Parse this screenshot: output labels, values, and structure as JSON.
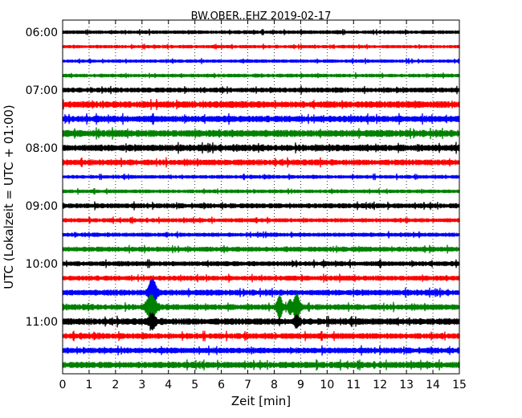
{
  "chart_data": {
    "type": "line",
    "title": "BW.OBER..EHZ 2019-02-17",
    "xlabel": "Zeit  [min]",
    "ylabel": "UTC (Lokalzeit = UTC + 01:00)",
    "xlim": [
      0,
      15
    ],
    "x_ticks": [
      "0",
      "1",
      "2",
      "3",
      "4",
      "5",
      "6",
      "7",
      "8",
      "9",
      "10",
      "11",
      "12",
      "13",
      "14",
      "15"
    ],
    "y_ticks": [
      "06:00",
      "07:00",
      "08:00",
      "09:00",
      "10:00",
      "11:00"
    ],
    "grid": "vertical dotted",
    "color_cycle": [
      "#000000",
      "#ff0000",
      "#0000ff",
      "#008000"
    ],
    "series": [
      {
        "start": "06:00",
        "noise": 0.22,
        "color": "#000000"
      },
      {
        "start": "06:15",
        "noise": 0.2,
        "color": "#ff0000"
      },
      {
        "start": "06:30",
        "noise": 0.2,
        "color": "#0000ff"
      },
      {
        "start": "06:45",
        "noise": 0.22,
        "color": "#008000"
      },
      {
        "start": "07:00",
        "noise": 0.3,
        "color": "#000000"
      },
      {
        "start": "07:15",
        "noise": 0.4,
        "color": "#ff0000"
      },
      {
        "start": "07:30",
        "noise": 0.4,
        "color": "#0000ff"
      },
      {
        "start": "07:45",
        "noise": 0.42,
        "color": "#008000"
      },
      {
        "start": "08:00",
        "noise": 0.4,
        "color": "#000000"
      },
      {
        "start": "08:15",
        "noise": 0.35,
        "color": "#ff0000"
      },
      {
        "start": "08:30",
        "noise": 0.22,
        "color": "#0000ff"
      },
      {
        "start": "08:45",
        "noise": 0.22,
        "color": "#008000"
      },
      {
        "start": "09:00",
        "noise": 0.3,
        "color": "#000000"
      },
      {
        "start": "09:15",
        "noise": 0.25,
        "color": "#ff0000"
      },
      {
        "start": "09:30",
        "noise": 0.25,
        "color": "#0000ff"
      },
      {
        "start": "09:45",
        "noise": 0.3,
        "color": "#008000"
      },
      {
        "start": "10:00",
        "noise": 0.3,
        "color": "#000000"
      },
      {
        "start": "10:15",
        "noise": 0.3,
        "color": "#ff0000"
      },
      {
        "start": "10:30",
        "noise": 0.35,
        "color": "#0000ff",
        "events": [
          {
            "t": 3.4,
            "amp": 1.8,
            "width": 0.15
          }
        ]
      },
      {
        "start": "10:45",
        "noise": 0.35,
        "color": "#008000",
        "events": [
          {
            "t": 3.35,
            "amp": 1.6,
            "width": 0.18
          },
          {
            "t": 8.2,
            "amp": 1.5,
            "width": 0.1
          },
          {
            "t": 8.6,
            "amp": 0.8,
            "width": 0.08
          },
          {
            "t": 8.85,
            "amp": 1.7,
            "width": 0.12
          }
        ]
      },
      {
        "start": "11:00",
        "noise": 0.4,
        "color": "#000000",
        "events": [
          {
            "t": 3.4,
            "amp": 0.9,
            "width": 0.12
          },
          {
            "t": 8.85,
            "amp": 0.7,
            "width": 0.1
          }
        ]
      },
      {
        "start": "11:15",
        "noise": 0.35,
        "color": "#ff0000"
      },
      {
        "start": "11:30",
        "noise": 0.35,
        "color": "#0000ff"
      },
      {
        "start": "11:45",
        "noise": 0.38,
        "color": "#008000"
      }
    ]
  }
}
